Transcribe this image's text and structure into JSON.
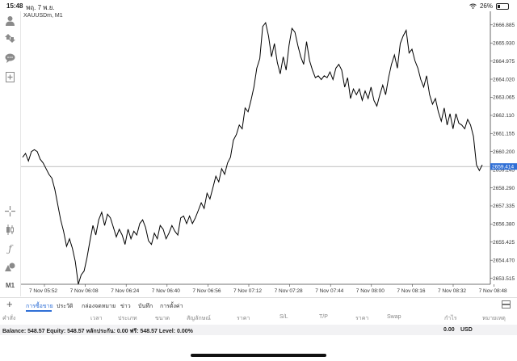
{
  "statusbar": {
    "time": "15:48",
    "date": "พฤ. 7 พ.ย.",
    "battery": "26%"
  },
  "toolbar": {
    "icons": [
      "person-icon",
      "trade-arrows-icon",
      "chat-bubble-icon",
      "add-document-icon",
      "crosshair-icon",
      "candlestick-icon",
      "function-icon",
      "objects-icon"
    ],
    "timeframe": "M1"
  },
  "chart": {
    "symbol": "XAUUSDm, M1",
    "current_price_label": "2659.414"
  },
  "chart_data": {
    "type": "line",
    "title": "XAUUSDm, M1",
    "price_ticks": [
      "2666.885",
      "2665.930",
      "2664.975",
      "2664.020",
      "2663.065",
      "2662.110",
      "2661.155",
      "2660.200",
      "2659.245",
      "2658.290",
      "2657.335",
      "2656.380",
      "2655.425",
      "2654.470",
      "2653.515"
    ],
    "time_ticks": [
      "7 Nov 05:52",
      "7 Nov 06:08",
      "7 Nov 06:24",
      "7 Nov 06:40",
      "7 Nov 06:56",
      "7 Nov 07:12",
      "7 Nov 07:28",
      "7 Nov 07:44",
      "7 Nov 08:00",
      "7 Nov 08:16",
      "7 Nov 08:32",
      "7 Nov 08:48"
    ],
    "ylim": [
      2653.2,
      2667.6
    ],
    "current_price": 2659.414,
    "series": [
      {
        "values": [
          2659.9,
          2660.1,
          2659.7,
          2660.2,
          2660.3,
          2660.2,
          2659.8,
          2659.6,
          2659.3,
          2659.0,
          2658.8,
          2658.2,
          2657.4,
          2656.6,
          2656.0,
          2655.2,
          2655.6,
          2655.1,
          2654.4,
          2653.2,
          2653.7,
          2653.9,
          2654.6,
          2655.5,
          2656.3,
          2655.8,
          2656.6,
          2657.0,
          2656.3,
          2656.9,
          2656.7,
          2656.2,
          2655.7,
          2656.1,
          2655.8,
          2655.3,
          2656.1,
          2655.6,
          2656.0,
          2655.8,
          2656.4,
          2656.6,
          2656.2,
          2655.5,
          2655.3,
          2655.9,
          2655.6,
          2656.3,
          2656.1,
          2655.6,
          2655.9,
          2656.3,
          2656.0,
          2655.8,
          2656.7,
          2656.8,
          2656.4,
          2656.8,
          2656.4,
          2656.7,
          2657.1,
          2657.5,
          2657.2,
          2658.0,
          2657.7,
          2658.3,
          2658.9,
          2658.6,
          2659.3,
          2659.0,
          2659.6,
          2659.9,
          2660.8,
          2661.1,
          2661.6,
          2661.4,
          2662.5,
          2662.3,
          2662.9,
          2663.6,
          2664.6,
          2665.1,
          2666.8,
          2667.0,
          2666.3,
          2665.2,
          2665.9,
          2664.9,
          2664.3,
          2665.2,
          2664.5,
          2665.8,
          2666.7,
          2666.5,
          2665.8,
          2665.2,
          2664.8,
          2666.0,
          2665.0,
          2664.5,
          2664.1,
          2664.2,
          2664.0,
          2664.2,
          2664.1,
          2664.4,
          2664.0,
          2664.6,
          2664.8,
          2664.5,
          2663.6,
          2664.1,
          2663.0,
          2663.5,
          2663.2,
          2663.5,
          2662.9,
          2663.4,
          2663.0,
          2663.6,
          2662.9,
          2662.6,
          2663.2,
          2663.7,
          2663.2,
          2664.1,
          2664.8,
          2665.3,
          2664.6,
          2665.9,
          2666.3,
          2666.6,
          2665.4,
          2665.6,
          2665.0,
          2664.6,
          2664.0,
          2663.6,
          2664.2,
          2663.2,
          2662.7,
          2663.0,
          2662.3,
          2661.8,
          2662.5,
          2661.6,
          2662.2,
          2661.4,
          2662.2,
          2661.7,
          2661.6,
          2661.4,
          2661.9,
          2661.6,
          2661.0,
          2659.5,
          2659.2,
          2659.5
        ]
      }
    ]
  },
  "tabs": {
    "items": [
      "การซื้อขาย",
      "ประวัติ",
      "กล่องจดหมาย",
      "ข่าว",
      "บันทึก",
      "การตั้งค่า"
    ],
    "active": "การซื้อขาย"
  },
  "table": {
    "columns": [
      "คำสั่ง",
      "เวลา",
      "ประเภท",
      "ขนาด",
      "สัญลักษณ์",
      "ราคา",
      "S/L",
      "T/P",
      "ราคา",
      "Swap",
      "กำไร",
      "หมายเหตุ"
    ]
  },
  "balance": {
    "text": "Balance: 548.57 Equity: 548.57 หลักประกัน: 0.00 ฟรี: 548.57 Level: 0.00%",
    "profit": "0.00",
    "currency": "USD"
  },
  "colors": {
    "accent": "#2f6fd6",
    "price_label": "#2f6fd6",
    "line": "#000000"
  }
}
